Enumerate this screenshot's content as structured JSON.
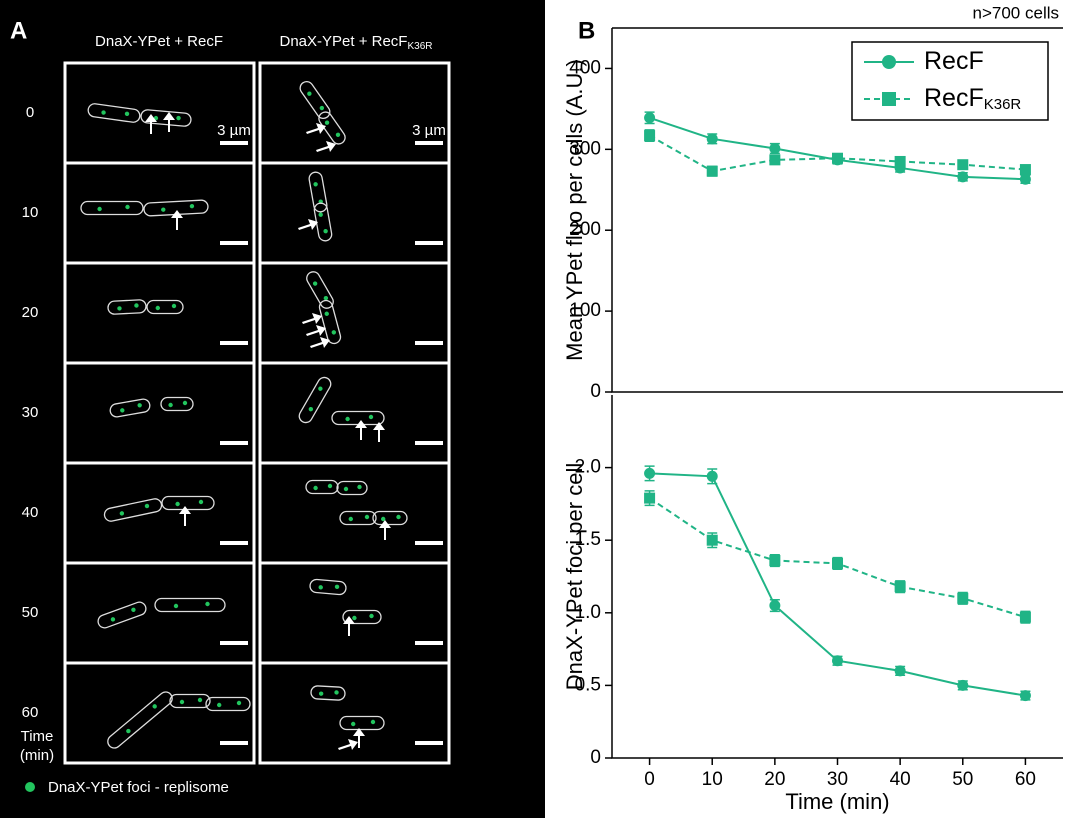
{
  "panel_a": {
    "label": "A",
    "column_headers": [
      {
        "text": "DnaX-YPet + RecF"
      },
      {
        "text": "DnaX-YPet + RecF",
        "sub": "K36R"
      }
    ],
    "time_labels": [
      "0",
      "10",
      "20",
      "30",
      "40",
      "50",
      "60"
    ],
    "time_axis_label": [
      "Time",
      "(min)"
    ],
    "scale_bar": "3 µm",
    "legend": "DnaX-YPet foci - replisome"
  },
  "panel_b": {
    "label": "B"
  },
  "chart_data": [
    {
      "type": "line",
      "annotation": "n>700 cells",
      "y_label": "Mean YPet fluo per cells (A.U.)",
      "x": [
        0,
        10,
        20,
        30,
        40,
        50,
        60
      ],
      "xlim": [
        -6,
        66
      ],
      "ylim": [
        0,
        450
      ],
      "yticks": [
        0,
        100,
        200,
        300,
        400
      ],
      "legend": "upper right",
      "series": [
        {
          "name": "RecF",
          "color": "#20b486",
          "marker": "circle",
          "dash": false,
          "values": [
            339,
            313,
            301,
            287,
            277,
            266,
            263
          ],
          "errors": [
            7,
            6,
            6,
            5,
            5,
            5,
            5
          ]
        },
        {
          "name": "RecF",
          "sub": "K36R",
          "color": "#20b486",
          "marker": "square",
          "dash": true,
          "values": [
            317,
            273,
            287,
            289,
            285,
            281,
            275
          ],
          "errors": [
            7,
            6,
            5,
            5,
            5,
            5,
            5
          ]
        }
      ]
    },
    {
      "type": "line",
      "y_label": "DnaX-YPet foci per cell",
      "x_label": "Time (min)",
      "x": [
        0,
        10,
        20,
        30,
        40,
        50,
        60
      ],
      "xlim": [
        -6,
        66
      ],
      "xticks": [
        0,
        10,
        20,
        30,
        40,
        50,
        60
      ],
      "ylim": [
        0,
        2.5
      ],
      "yticks": [
        0,
        {
          "value": 0.5,
          "label": "0.5"
        },
        {
          "value": 1,
          "label": "1.0"
        },
        1.5,
        {
          "value": 2,
          "label": "2.0"
        }
      ],
      "series": [
        {
          "color": "#20b486",
          "marker": "circle",
          "dash": false,
          "values": [
            1.96,
            1.94,
            1.05,
            0.67,
            0.6,
            0.5,
            0.43
          ],
          "errors": [
            0.05,
            0.05,
            0.04,
            0.03,
            0.03,
            0.03,
            0.03
          ]
        },
        {
          "color": "#20b486",
          "marker": "square",
          "dash": true,
          "values": [
            1.79,
            1.5,
            1.36,
            1.34,
            1.18,
            1.1,
            0.97
          ],
          "errors": [
            0.05,
            0.05,
            0.04,
            0.04,
            0.04,
            0.04,
            0.04
          ]
        }
      ]
    }
  ]
}
